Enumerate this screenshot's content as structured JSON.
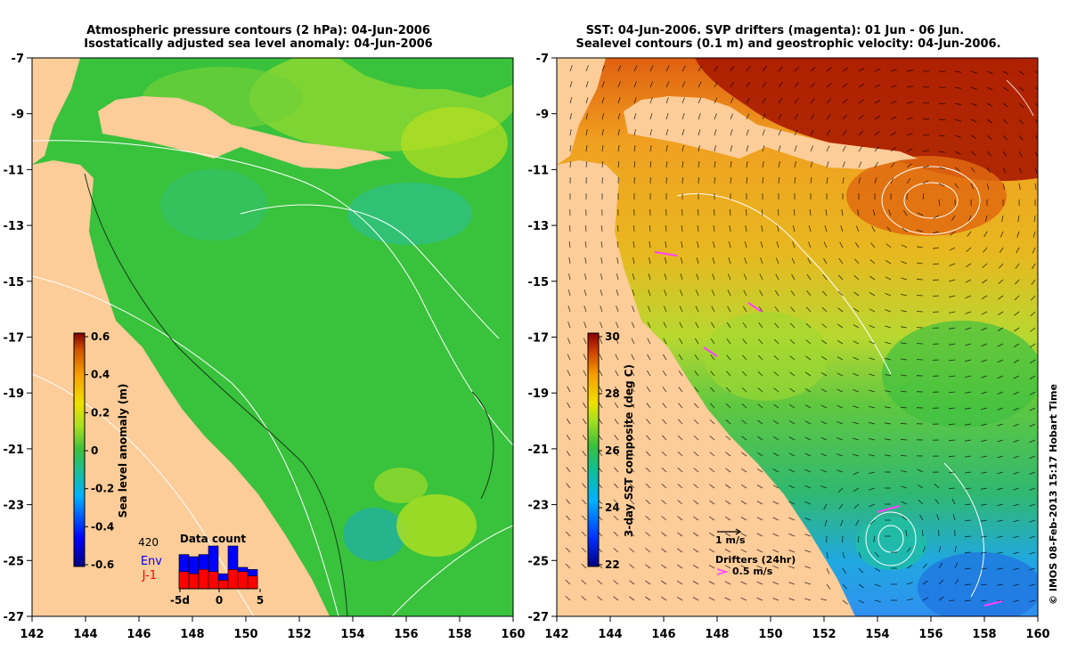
{
  "left_panel": {
    "title_line1": "Atmospheric pressure contours (2 hPa): 04-Jun-2006",
    "title_line2": "Isostatically adjusted sea level anomaly: 04-Jun-2006",
    "x_ticks": [
      "142",
      "144",
      "146",
      "148",
      "150",
      "152",
      "154",
      "156",
      "158",
      "160"
    ],
    "y_ticks": [
      "-7",
      "-9",
      "-11",
      "-13",
      "-15",
      "-17",
      "-19",
      "-21",
      "-23",
      "-25",
      "-27"
    ],
    "colorbar": {
      "label": "Sea level anomaly (m)",
      "ticks": [
        "0.6",
        "0.4",
        "0.2",
        "0",
        "-0.2",
        "-0.4",
        "-0.6"
      ]
    },
    "data_count": {
      "title": "Data count",
      "max_label": "420",
      "env_label": "Env",
      "ji_label": "J-1",
      "x_labels": [
        "-5d",
        "0",
        "5"
      ],
      "env_values": [
        0.8,
        0.75,
        0.8,
        1.0,
        0.35,
        1.0,
        0.5,
        0.45
      ],
      "ji_values": [
        0.4,
        0.35,
        0.45,
        0.4,
        0.2,
        0.45,
        0.4,
        0.3
      ]
    }
  },
  "right_panel": {
    "title_line1": "SST: 04-Jun-2006. SVP drifters (magenta): 01 Jun - 06 Jun.",
    "title_line2": "Sealevel contours (0.1 m) and geostrophic velocity: 04-Jun-2006.",
    "x_ticks": [
      "142",
      "144",
      "146",
      "148",
      "150",
      "152",
      "154",
      "156",
      "158",
      "160"
    ],
    "y_ticks": [
      "-7",
      "-9",
      "-11",
      "-13",
      "-15",
      "-17",
      "-19",
      "-21",
      "-23",
      "-25",
      "-27"
    ],
    "colorbar": {
      "label": "3-day SST composite (deg C)",
      "ticks": [
        "30",
        "28",
        "26",
        "24",
        "22"
      ]
    },
    "velocity_legend": "1 m/s",
    "drifters_label": "Drifters (24hr)",
    "drifters_speed": "0.5 m/s"
  },
  "credit": "© IMOS 08-Feb-2013 15:17 Hobart Time",
  "colors": {
    "land": "#fccc99",
    "sea_green": "#39c23c",
    "drifter": "#ff40ff",
    "env_bar": "#0000ff",
    "ji_bar": "#ff0000"
  }
}
